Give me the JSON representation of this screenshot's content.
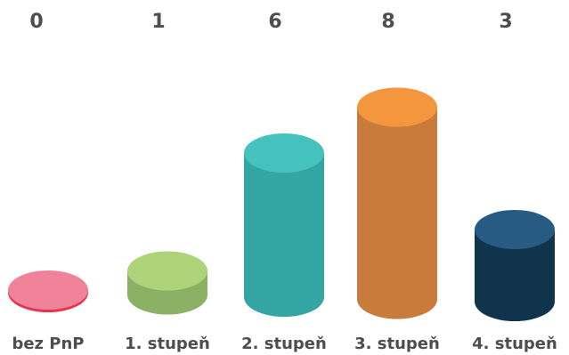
{
  "chart_data": {
    "type": "bar",
    "categories": [
      "bez PnP",
      "1. stupeň",
      "2. stupeň",
      "3. stupeň",
      "4. stupeň"
    ],
    "values": [
      0,
      1,
      6,
      8,
      3
    ],
    "ylim": [
      0,
      8
    ],
    "grid": false,
    "legend": "none",
    "colors": [
      {
        "top": "#F08399",
        "side": "#E8334F"
      },
      {
        "top": "#AED47A",
        "side": "#8BB165"
      },
      {
        "top": "#45C2BE",
        "side": "#33A5A2"
      },
      {
        "top": "#F4963E",
        "side": "#C87B3B"
      },
      {
        "top": "#275B84",
        "side": "#0F344C"
      }
    ]
  }
}
